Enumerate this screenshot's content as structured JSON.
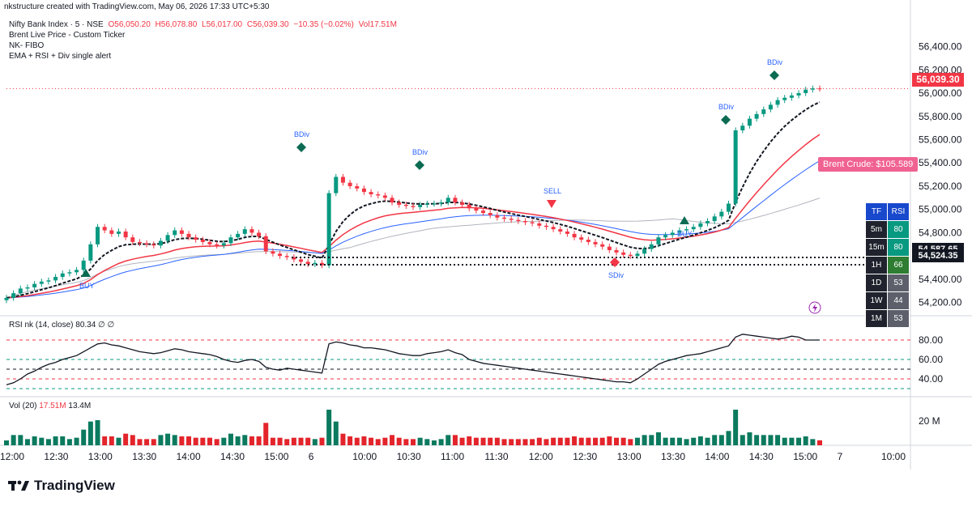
{
  "header": "nkstructure created with TradingView.com, May 06, 2026 17:33 UTC+5:30",
  "legend": {
    "symbol": "Nifty Bank Index · 5 · NSE",
    "ohlc": {
      "o": "O56,050.20",
      "h": "H56,078.80",
      "l": "L56,017.00",
      "c": "C56,039.30",
      "chg": "−10.35 (−0.02%)",
      "vol": "Vol17.51M"
    },
    "indicators": [
      "Brent Live Price - Custom Ticker",
      "NK- FIBO",
      "EMA + RSI + Div single alert"
    ]
  },
  "rsi_legend": "RSI nk (14, close)  80.34  ∅  ∅",
  "vol_legend": {
    "label": "Vol (20)",
    "value": "17.51M",
    "ma": "13.4M"
  },
  "footer": {
    "brand": "TradingView"
  },
  "price_tag": "56,039.30",
  "level_tags": [
    "54,587.65",
    "54,524.35"
  ],
  "brent": "Brent Crude: $105.589",
  "tf_table": {
    "head": [
      "TF",
      "RSI"
    ],
    "rows": [
      {
        "tf": "5m",
        "rsi": "80",
        "color": "#089981"
      },
      {
        "tf": "15m",
        "rsi": "80",
        "color": "#089981"
      },
      {
        "tf": "1H",
        "rsi": "66",
        "color": "#2e7d32"
      },
      {
        "tf": "1D",
        "rsi": "53",
        "color": "#5d606b"
      },
      {
        "tf": "1W",
        "rsi": "44",
        "color": "#5d606b"
      },
      {
        "tf": "1M",
        "rsi": "53",
        "color": "#5d606b"
      }
    ]
  },
  "colors": {
    "up": "#089981",
    "down": "#f23645",
    "ema_fast": "#131722",
    "ema_slow": "#f23645",
    "ema_blue": "#2962ff",
    "sma_grey": "#b2b5be"
  },
  "chart_data": {
    "type": "candlestick",
    "price_axis_ticks": [
      "56,400.00",
      "56,200.00",
      "56,000.00",
      "55,800.00",
      "55,600.00",
      "55,400.00",
      "55,200.00",
      "55,000.00",
      "54,800.00",
      "54,600.00",
      "54,400.00",
      "54,200.00"
    ],
    "price_range": [
      54100,
      56550
    ],
    "time_axis_ticks": [
      "12:00",
      "12:30",
      "13:00",
      "13:30",
      "14:00",
      "14:30",
      "15:00",
      "6",
      "10:00",
      "10:30",
      "11:00",
      "11:30",
      "12:00",
      "12:30",
      "13:00",
      "13:30",
      "14:00",
      "14:30",
      "15:00",
      "7",
      "10:00"
    ],
    "closes": [
      54240,
      54280,
      54320,
      54330,
      54360,
      54380,
      54390,
      54420,
      54450,
      54460,
      54480,
      54560,
      54700,
      54850,
      54820,
      54790,
      54810,
      54760,
      54720,
      54710,
      54700,
      54690,
      54730,
      54780,
      54820,
      54790,
      54760,
      54740,
      54720,
      54700,
      54690,
      54710,
      54760,
      54790,
      54830,
      54800,
      54770,
      54640,
      54620,
      54600,
      54590,
      54570,
      54550,
      54530,
      54540,
      54520,
      55140,
      55280,
      55230,
      55200,
      55180,
      55150,
      55130,
      55120,
      55100,
      55060,
      55040,
      55030,
      55020,
      55040,
      55050,
      55050,
      55060,
      55100,
      55060,
      55040,
      55010,
      54990,
      54970,
      54950,
      54930,
      54920,
      54910,
      54900,
      54890,
      54880,
      54860,
      54850,
      54830,
      54810,
      54790,
      54760,
      54740,
      54720,
      54700,
      54680,
      54650,
      54630,
      54610,
      54600,
      54620,
      54660,
      54700,
      54760,
      54780,
      54800,
      54820,
      54830,
      54850,
      54880,
      54900,
      54940,
      54980,
      55050,
      55680,
      55720,
      55780,
      55820,
      55860,
      55900,
      55940,
      55960,
      55980,
      56000,
      56030,
      56040,
      56039
    ],
    "rsi_axis_ticks": [
      "80.00",
      "60.00",
      "40.00"
    ],
    "rsi_range": [
      25,
      95
    ],
    "rsi_levels": [
      80,
      60,
      50,
      40,
      30
    ],
    "rsi": [
      34,
      36,
      40,
      45,
      48,
      52,
      55,
      57,
      60,
      62,
      64,
      68,
      72,
      76,
      77,
      75,
      74,
      72,
      70,
      68,
      67,
      66,
      67,
      69,
      71,
      70,
      68,
      67,
      66,
      65,
      63,
      60,
      58,
      57,
      59,
      60,
      58,
      52,
      50,
      49,
      51,
      50,
      49,
      48,
      47,
      46,
      76,
      78,
      77,
      75,
      74,
      72,
      72,
      71,
      70,
      68,
      66,
      65,
      64,
      64,
      66,
      67,
      68,
      70,
      67,
      65,
      60,
      58,
      56,
      55,
      54,
      53,
      52,
      51,
      50,
      49,
      48,
      47,
      46,
      45,
      44,
      43,
      42,
      41,
      40,
      39,
      38,
      37,
      37,
      36,
      40,
      45,
      50,
      55,
      58,
      60,
      62,
      64,
      65,
      66,
      68,
      70,
      72,
      74,
      83,
      86,
      85,
      84,
      83,
      82,
      81,
      82,
      84,
      83,
      80,
      80,
      80
    ]
  }
}
